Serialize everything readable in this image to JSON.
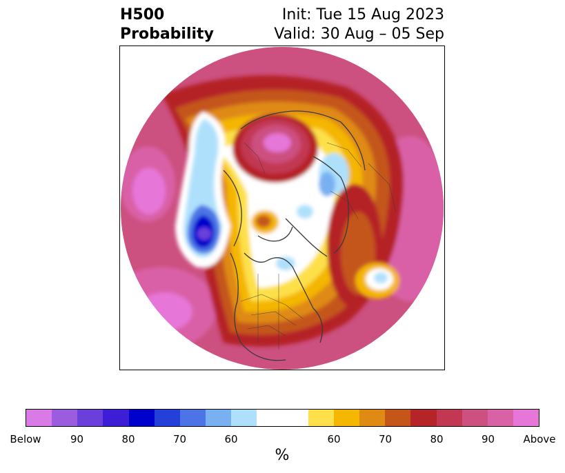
{
  "header": {
    "title_line1": "H500",
    "title_line2": "Probability",
    "init_label": "Init: Tue 15 Aug 2023",
    "valid_label": "Valid: 30 Aug – 05 Sep"
  },
  "colorbar": {
    "unit_label": "%",
    "colors": [
      "#d97ae6",
      "#9c5ce0",
      "#6b3fdc",
      "#3d1ed6",
      "#0000cc",
      "#2440d8",
      "#4c74e6",
      "#78b0f2",
      "#aee0fc",
      "#ffffff",
      "#ffffff",
      "#fde04a",
      "#f4b600",
      "#df8a12",
      "#c4561a",
      "#b52426",
      "#c23852",
      "#cc5080",
      "#d961a6",
      "#e676d8"
    ],
    "tick_labels": [
      "Below",
      "90",
      "80",
      "70",
      "60",
      "60",
      "70",
      "80",
      "90",
      "Above"
    ]
  },
  "map": {
    "projection": "north-polar-stereographic",
    "legend_colors": {
      "above_high": "#e676d8",
      "above_mid": "#cc5080",
      "above_low": "#b52426",
      "neutral_warm": "#fde04a",
      "below_low": "#aee0fc",
      "below_high": "#0000cc"
    }
  }
}
